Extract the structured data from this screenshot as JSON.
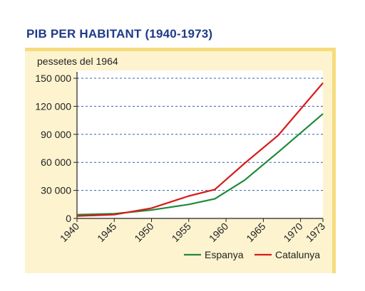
{
  "title": "PIB PER HABITANT (1940-1973)",
  "chart_data": {
    "type": "line",
    "title": "PIB PER HABITANT (1940-1973)",
    "ylabel": "pessetes del 1964",
    "xlabel": "",
    "xlim": [
      1940,
      1973
    ],
    "ylim": [
      0,
      150000
    ],
    "x_ticks": [
      1940,
      1945,
      1950,
      1955,
      1960,
      1965,
      1970,
      1973
    ],
    "y_ticks": [
      0,
      30000,
      60000,
      90000,
      120000,
      150000
    ],
    "y_tick_labels": [
      "0",
      "30 000",
      "60 000",
      "90 000",
      "120 000",
      "150 000"
    ],
    "grid": "horizontal dashed",
    "legend_position": "bottom-right",
    "series": [
      {
        "name": "Espanya",
        "color": "#1e8a3a",
        "x": [
          1940,
          1945,
          1950,
          1955,
          1958.5,
          1962.5,
          1967,
          1973
        ],
        "y": [
          4000,
          5000,
          9000,
          15000,
          21000,
          41000,
          71000,
          112000
        ]
      },
      {
        "name": "Catalunya",
        "color": "#d91a1a",
        "x": [
          1940,
          1945,
          1950,
          1955,
          1958.5,
          1962.5,
          1967,
          1973
        ],
        "y": [
          2500,
          4000,
          11000,
          24000,
          31000,
          59000,
          89000,
          145000
        ]
      }
    ]
  }
}
